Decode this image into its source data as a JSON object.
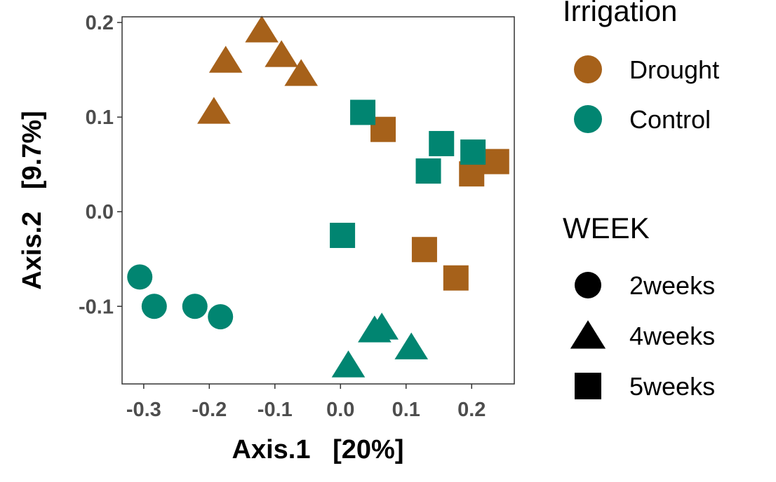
{
  "chart_data": {
    "type": "scatter",
    "xlabel": "Axis.1   [20%]",
    "ylabel": "Axis.2   [9.7%]",
    "xlim": [
      -0.333,
      0.265
    ],
    "ylim": [
      -0.182,
      0.206
    ],
    "x_ticks": [
      -0.3,
      -0.2,
      -0.1,
      0.0,
      0.1,
      0.2
    ],
    "x_tick_labels": [
      "-0.3",
      "-0.2",
      "-0.1",
      "0.0",
      "0.1",
      "0.2"
    ],
    "y_ticks": [
      -0.1,
      0.0,
      0.1,
      0.2
    ],
    "y_tick_labels": [
      "-0.1",
      "0.0",
      "0.1",
      "0.2"
    ],
    "grid": false,
    "legend_placement": "right",
    "color_legend": {
      "title": "Irrigation",
      "entries": [
        {
          "label": "Drought",
          "color": "#A6611A"
        },
        {
          "label": "Control",
          "color": "#018571"
        }
      ]
    },
    "shape_legend": {
      "title": "WEEK",
      "entries": [
        {
          "label": "2weeks",
          "shape": "circle"
        },
        {
          "label": "4weeks",
          "shape": "triangle"
        },
        {
          "label": "5weeks",
          "shape": "square"
        }
      ]
    },
    "points": [
      {
        "x": -0.12,
        "y": 0.192,
        "group": "Drought",
        "week": "4weeks"
      },
      {
        "x": -0.175,
        "y": 0.16,
        "group": "Drought",
        "week": "4weeks"
      },
      {
        "x": -0.09,
        "y": 0.166,
        "group": "Drought",
        "week": "4weeks"
      },
      {
        "x": -0.06,
        "y": 0.146,
        "group": "Drought",
        "week": "4weeks"
      },
      {
        "x": -0.193,
        "y": 0.106,
        "group": "Drought",
        "week": "4weeks"
      },
      {
        "x": 0.065,
        "y": 0.087,
        "group": "Drought",
        "week": "5weeks"
      },
      {
        "x": 0.2,
        "y": 0.04,
        "group": "Drought",
        "week": "5weeks"
      },
      {
        "x": 0.238,
        "y": 0.053,
        "group": "Drought",
        "week": "5weeks"
      },
      {
        "x": 0.128,
        "y": -0.04,
        "group": "Drought",
        "week": "5weeks"
      },
      {
        "x": 0.176,
        "y": -0.07,
        "group": "Drought",
        "week": "5weeks"
      },
      {
        "x": -0.306,
        "y": -0.069,
        "group": "Control",
        "week": "2weeks"
      },
      {
        "x": -0.284,
        "y": -0.1,
        "group": "Control",
        "week": "2weeks"
      },
      {
        "x": -0.222,
        "y": -0.1,
        "group": "Control",
        "week": "2weeks"
      },
      {
        "x": -0.183,
        "y": -0.111,
        "group": "Control",
        "week": "2weeks"
      },
      {
        "x": 0.052,
        "y": -0.125,
        "group": "Control",
        "week": "4weeks"
      },
      {
        "x": 0.063,
        "y": -0.122,
        "group": "Control",
        "week": "4weeks"
      },
      {
        "x": 0.108,
        "y": -0.143,
        "group": "Control",
        "week": "4weeks"
      },
      {
        "x": 0.012,
        "y": -0.162,
        "group": "Control",
        "week": "4weeks"
      },
      {
        "x": 0.034,
        "y": 0.105,
        "group": "Control",
        "week": "5weeks"
      },
      {
        "x": 0.154,
        "y": 0.072,
        "group": "Control",
        "week": "5weeks"
      },
      {
        "x": 0.202,
        "y": 0.063,
        "group": "Control",
        "week": "5weeks"
      },
      {
        "x": 0.134,
        "y": 0.043,
        "group": "Control",
        "week": "5weeks"
      },
      {
        "x": 0.003,
        "y": -0.025,
        "group": "Control",
        "week": "5weeks"
      }
    ]
  }
}
